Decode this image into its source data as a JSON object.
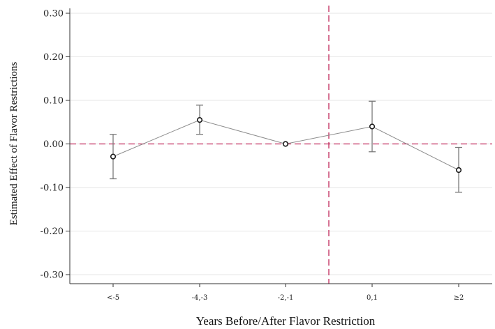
{
  "chart_data": {
    "type": "line",
    "title": "",
    "xlabel": "Years Before/After Flavor Restriction",
    "ylabel": "Estimated Effect of Flavor Restrictions",
    "categories": [
      "<-5",
      "-4,-3",
      "-2,-1",
      "0,1",
      "≥2"
    ],
    "ylim": [
      -0.3,
      0.3
    ],
    "yticks": [
      0.3,
      0.2,
      0.1,
      0.0,
      -0.1,
      -0.2,
      -0.3
    ],
    "ytick_labels": [
      "0.30",
      "0.20",
      "0.10",
      "0.00",
      "-0.10",
      "-0.20",
      "-0.30"
    ],
    "series": [
      {
        "values": [
          -0.029,
          0.055,
          0.0,
          0.04,
          -0.06
        ],
        "ci_low": [
          -0.08,
          0.022,
          0.0,
          -0.018,
          -0.111
        ],
        "ci_high": [
          0.022,
          0.089,
          0.0,
          0.098,
          -0.008
        ]
      }
    ],
    "reference_lines": {
      "horizontal_y": 0.0,
      "vertical_between": [
        "-2,-1",
        "0,1"
      ]
    },
    "grid": "horizontal",
    "colors": {
      "line": "#8c8c8c",
      "marker_edge": "#1a1a1a",
      "errorbar": "#7a7a7a",
      "reference": "#c0285a",
      "grid": "#e6e6e6",
      "axis": "#333333"
    }
  }
}
